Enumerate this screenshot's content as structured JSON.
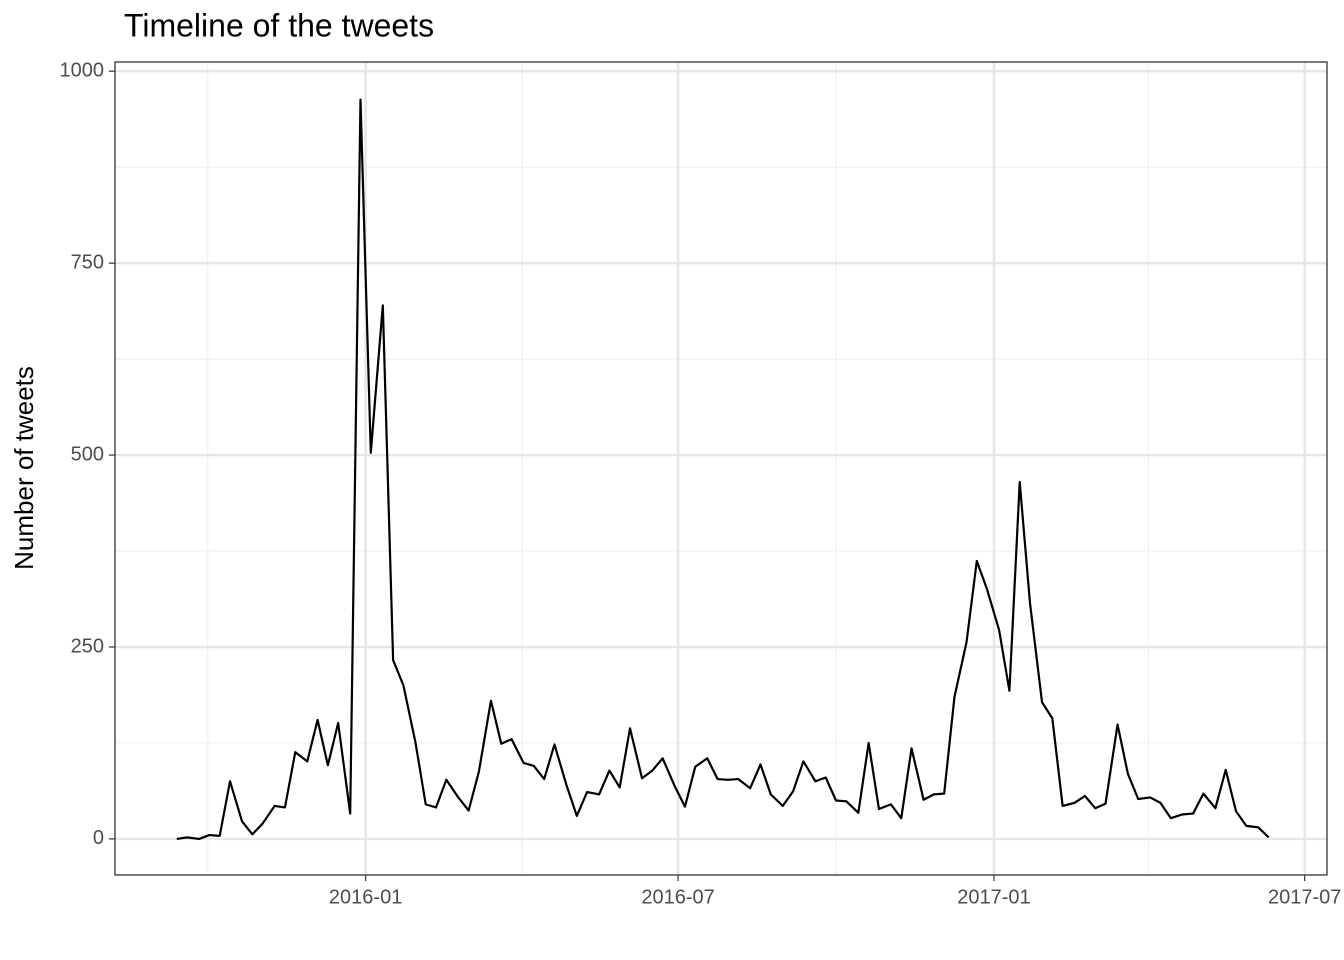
{
  "chart_data": {
    "type": "line",
    "title": "Timeline of the tweets",
    "y_label": "Number of tweets",
    "x": [
      "2015-09-13",
      "2015-09-19",
      "2015-09-26",
      "2015-10-02",
      "2015-10-08",
      "2015-10-14",
      "2015-10-21",
      "2015-10-27",
      "2015-11-02",
      "2015-11-09",
      "2015-11-15",
      "2015-11-21",
      "2015-11-28",
      "2015-12-04",
      "2015-12-10",
      "2015-12-16",
      "2015-12-23",
      "2015-12-29",
      "2016-01-04",
      "2016-01-11",
      "2016-01-17",
      "2016-01-23",
      "2016-01-30",
      "2016-02-05",
      "2016-02-11",
      "2016-02-17",
      "2016-02-24",
      "2016-03-01",
      "2016-03-07",
      "2016-03-14",
      "2016-03-20",
      "2016-03-26",
      "2016-04-02",
      "2016-04-08",
      "2016-04-14",
      "2016-04-20",
      "2016-04-27",
      "2016-05-03",
      "2016-05-09",
      "2016-05-16",
      "2016-05-22",
      "2016-05-28",
      "2016-06-03",
      "2016-06-10",
      "2016-06-16",
      "2016-06-22",
      "2016-06-29",
      "2016-07-05",
      "2016-07-11",
      "2016-07-18",
      "2016-07-24",
      "2016-07-30",
      "2016-08-05",
      "2016-08-12",
      "2016-08-18",
      "2016-08-24",
      "2016-08-31",
      "2016-09-06",
      "2016-09-12",
      "2016-09-19",
      "2016-09-25",
      "2016-10-01",
      "2016-10-07",
      "2016-10-14",
      "2016-10-20",
      "2016-10-26",
      "2016-11-02",
      "2016-11-08",
      "2016-11-14",
      "2016-11-21",
      "2016-11-27",
      "2016-12-03",
      "2016-12-09",
      "2016-12-16",
      "2016-12-22",
      "2016-12-28",
      "2017-01-04",
      "2017-01-10",
      "2017-01-16",
      "2017-01-22",
      "2017-01-29",
      "2017-02-04",
      "2017-02-10",
      "2017-02-17",
      "2017-02-23",
      "2017-03-01",
      "2017-03-07",
      "2017-03-14",
      "2017-03-20",
      "2017-03-26",
      "2017-04-02",
      "2017-04-08",
      "2017-04-14",
      "2017-04-21",
      "2017-04-27",
      "2017-05-03",
      "2017-05-10",
      "2017-05-16",
      "2017-05-22",
      "2017-05-28",
      "2017-06-04",
      "2017-06-10"
    ],
    "series": [
      {
        "name": "tweets",
        "color": "#000000",
        "values": [
          0,
          2,
          0,
          5,
          4,
          75,
          23,
          6,
          20,
          43,
          41,
          113,
          101,
          155,
          96,
          151,
          33,
          963,
          503,
          695,
          233,
          200,
          126,
          45,
          41,
          77,
          54,
          37,
          88,
          180,
          124,
          130,
          99,
          95,
          78,
          123,
          70,
          30,
          61,
          58,
          89,
          67,
          144,
          79,
          89,
          105,
          69,
          42,
          94,
          105,
          78,
          77,
          78,
          66,
          97,
          58,
          43,
          62,
          101,
          75,
          80,
          50,
          49,
          34,
          125,
          39,
          45,
          27,
          118,
          51,
          58,
          59,
          185,
          256,
          362,
          325,
          272,
          193,
          465,
          307,
          178,
          157,
          43,
          47,
          56,
          40,
          46,
          149,
          85,
          52,
          54,
          47,
          27,
          32,
          33,
          59,
          40,
          90,
          36,
          17,
          15,
          2
        ]
      }
    ],
    "xlim": [
      "2015-08-08",
      "2017-07-14"
    ],
    "xticks": [
      "2016-01",
      "2016-07",
      "2017-01",
      "2017-07"
    ],
    "xminor": [
      "2015-10",
      "2016-04",
      "2016-10",
      "2017-04"
    ],
    "ylim": [
      -47,
      1012
    ],
    "yticks": [
      0,
      250,
      500,
      750,
      1000
    ],
    "yminor": [
      125,
      375,
      625,
      875
    ],
    "grid": true
  }
}
